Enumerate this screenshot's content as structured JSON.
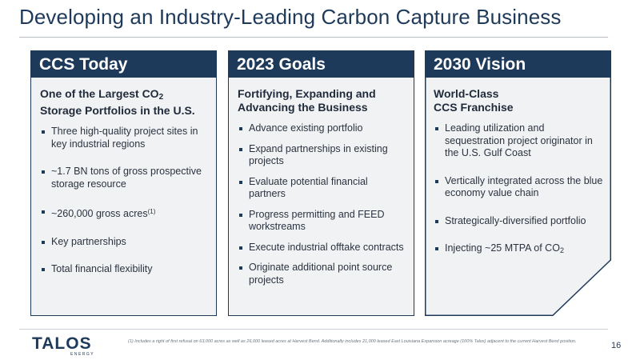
{
  "title": "Developing an Industry-Leading Carbon Capture Business",
  "columns": [
    {
      "header": "CCS Today",
      "subtitle_pre": "One of the Largest CO",
      "subtitle_sub": "2",
      "subtitle_post": "Storage Portfolios in the U.S.",
      "bullets": [
        "Three high-quality project sites in key industrial regions",
        "~1.7 BN tons of gross prospective storage resource",
        "~260,000 gross acres",
        "Key partnerships",
        "Total financial flexibility"
      ],
      "acres_footnote_mark": "(1)"
    },
    {
      "header": "2023 Goals",
      "subtitle": "Fortifying, Expanding and Advancing the Business",
      "bullets": [
        "Advance existing portfolio",
        "Expand partnerships in existing projects",
        "Evaluate potential financial partners",
        "Progress permitting and FEED workstreams",
        "Execute industrial offtake contracts",
        "Originate additional point source projects"
      ]
    },
    {
      "header": "2030 Vision",
      "subtitle": "World-Class CCS Franchise",
      "subtitle_line1": "World-Class",
      "subtitle_line2": "CCS Franchise",
      "bullets": [
        "Leading utilization and sequestration project originator in the U.S. Gulf Coast",
        "Vertically integrated across the blue economy value chain",
        "Strategically-diversified portfolio",
        "Injecting ~25 MTPA of CO"
      ],
      "co2_sub": "2"
    }
  ],
  "footer": {
    "logo": "TALOS",
    "logo_sub": "ENERGY",
    "footnote": "(1) Includes a right of first refusal on 63,000 acres as well as 26,000 leased acres at Harvest Bend. Additionally includes 21,000 leased East Louisiana Expansion acreage (100% Talos) adjacent to the current Harvest Bend position.",
    "page_number": "16"
  },
  "colors": {
    "navy": "#1e3a5a",
    "panel": "#f1f2f4"
  }
}
